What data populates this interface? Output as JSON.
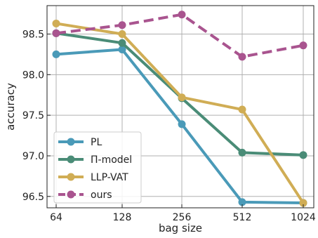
{
  "chart_data": {
    "type": "line",
    "xlabel": "bag size",
    "ylabel": "accuracy",
    "categories": [
      "64",
      "128",
      "256",
      "512",
      "1024"
    ],
    "yticks": [
      "96.5",
      "97.0",
      "97.5",
      "98.0",
      "98.5"
    ],
    "ylim": [
      96.36,
      98.85
    ],
    "grid": true,
    "legend_position": "lower-left",
    "series": [
      {
        "name": "PL",
        "color": "#4a9ab8",
        "dashed": false,
        "values": [
          98.25,
          98.31,
          97.39,
          96.43,
          96.42
        ]
      },
      {
        "name": "Π-model",
        "color": "#4a8c77",
        "dashed": false,
        "values": [
          98.51,
          98.39,
          97.71,
          97.04,
          97.01
        ]
      },
      {
        "name": "LLP-VAT",
        "color": "#d0ad55",
        "dashed": false,
        "values": [
          98.63,
          98.5,
          97.72,
          97.57,
          96.42
        ]
      },
      {
        "name": "ours",
        "color": "#a9548f",
        "dashed": true,
        "values": [
          98.51,
          98.61,
          98.74,
          98.22,
          98.36
        ]
      }
    ]
  }
}
